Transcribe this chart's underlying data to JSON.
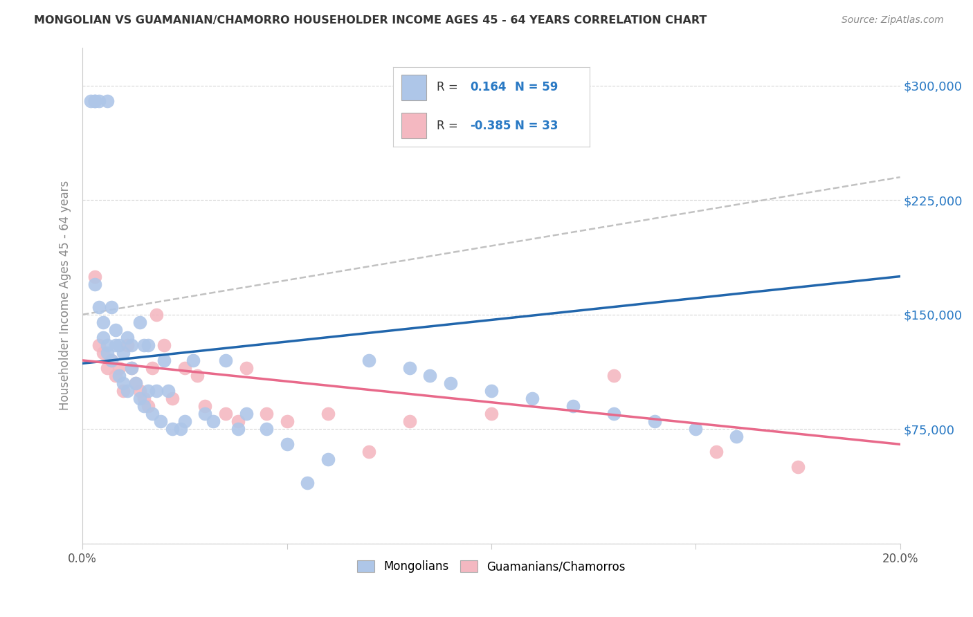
{
  "title": "MONGOLIAN VS GUAMANIAN/CHAMORRO HOUSEHOLDER INCOME AGES 45 - 64 YEARS CORRELATION CHART",
  "source": "Source: ZipAtlas.com",
  "ylabel": "Householder Income Ages 45 - 64 years",
  "xlim": [
    0.0,
    0.2
  ],
  "ylim": [
    0,
    325000
  ],
  "yticks": [
    0,
    75000,
    150000,
    225000,
    300000
  ],
  "ytick_labels": [
    "",
    "$75,000",
    "$150,000",
    "$225,000",
    "$300,000"
  ],
  "xticks": [
    0.0,
    0.05,
    0.1,
    0.15,
    0.2
  ],
  "xtick_labels": [
    "0.0%",
    "",
    "",
    "",
    "20.0%"
  ],
  "mongolian_color": "#aec6e8",
  "guamanian_color": "#f4b8c1",
  "mongolian_line_color": "#2166ac",
  "guamanian_line_color": "#e8698a",
  "dashed_line_color": "#bbbbbb",
  "background_color": "#ffffff",
  "mongolian_x": [
    0.002,
    0.003,
    0.003,
    0.004,
    0.006,
    0.003,
    0.004,
    0.005,
    0.005,
    0.006,
    0.006,
    0.007,
    0.007,
    0.008,
    0.008,
    0.009,
    0.009,
    0.01,
    0.01,
    0.011,
    0.011,
    0.012,
    0.012,
    0.013,
    0.014,
    0.014,
    0.015,
    0.015,
    0.016,
    0.016,
    0.017,
    0.018,
    0.019,
    0.02,
    0.021,
    0.022,
    0.024,
    0.025,
    0.027,
    0.03,
    0.032,
    0.035,
    0.038,
    0.04,
    0.045,
    0.05,
    0.055,
    0.06,
    0.07,
    0.08,
    0.085,
    0.09,
    0.1,
    0.11,
    0.12,
    0.13,
    0.14,
    0.15,
    0.16
  ],
  "mongolian_y": [
    290000,
    290000,
    290000,
    290000,
    290000,
    170000,
    155000,
    145000,
    135000,
    130000,
    125000,
    155000,
    120000,
    140000,
    130000,
    130000,
    110000,
    125000,
    105000,
    100000,
    135000,
    130000,
    115000,
    105000,
    95000,
    145000,
    130000,
    90000,
    130000,
    100000,
    85000,
    100000,
    80000,
    120000,
    100000,
    75000,
    75000,
    80000,
    120000,
    85000,
    80000,
    120000,
    75000,
    85000,
    75000,
    65000,
    40000,
    55000,
    120000,
    115000,
    110000,
    105000,
    100000,
    95000,
    90000,
    85000,
    80000,
    75000,
    70000
  ],
  "guamanian_x": [
    0.003,
    0.004,
    0.005,
    0.006,
    0.007,
    0.008,
    0.009,
    0.01,
    0.011,
    0.012,
    0.013,
    0.014,
    0.015,
    0.016,
    0.017,
    0.018,
    0.02,
    0.022,
    0.025,
    0.028,
    0.03,
    0.035,
    0.038,
    0.04,
    0.045,
    0.05,
    0.06,
    0.07,
    0.08,
    0.1,
    0.13,
    0.155,
    0.175
  ],
  "guamanian_y": [
    175000,
    130000,
    125000,
    115000,
    120000,
    110000,
    115000,
    100000,
    130000,
    115000,
    105000,
    100000,
    95000,
    90000,
    115000,
    150000,
    130000,
    95000,
    115000,
    110000,
    90000,
    85000,
    80000,
    115000,
    85000,
    80000,
    85000,
    60000,
    80000,
    85000,
    110000,
    60000,
    50000
  ],
  "mon_line_x0": 0.0,
  "mon_line_x1": 0.2,
  "mon_line_y0": 118000,
  "mon_line_y1": 175000,
  "gua_line_x0": 0.0,
  "gua_line_x1": 0.2,
  "gua_line_y0": 120000,
  "gua_line_y1": 65000,
  "dash_line_x0": 0.0,
  "dash_line_x1": 0.2,
  "dash_line_y0": 150000,
  "dash_line_y1": 240000
}
